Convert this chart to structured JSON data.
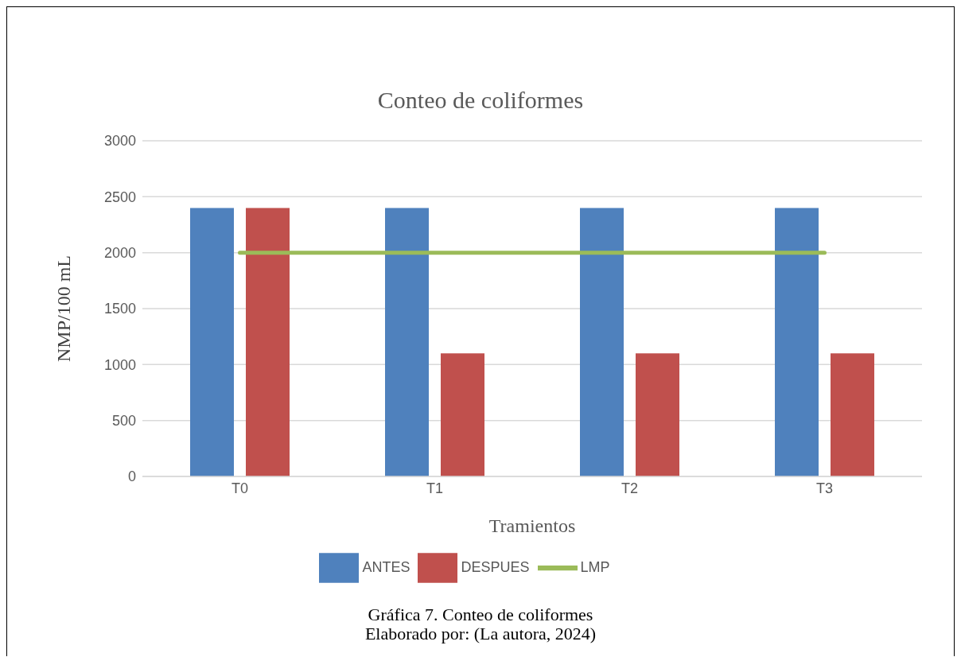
{
  "chart_data": {
    "type": "bar",
    "title": "Conteo de coliformes",
    "xlabel": "Tramientos",
    "ylabel": "NMP/100 mL",
    "categories": [
      "T0",
      "T1",
      "T2",
      "T3"
    ],
    "series": [
      {
        "name": "ANTES",
        "color": "#4f81bd",
        "values": [
          2400,
          2400,
          2400,
          2400
        ]
      },
      {
        "name": "DESPUES",
        "color": "#c0504d",
        "values": [
          2400,
          1100,
          1100,
          1100
        ]
      },
      {
        "name": "LMP",
        "type": "line",
        "color": "#9bbb59",
        "values": [
          2000,
          2000,
          2000,
          2000
        ]
      }
    ],
    "ylim": [
      0,
      3000
    ],
    "yticks": [
      0,
      500,
      1000,
      1500,
      2000,
      2500,
      3000
    ],
    "grid": "y",
    "legend": "bottom",
    "marker": "none",
    "annotations": [
      "Gráfica 7. Conteo de coliformes",
      "Elaborado por: (La autora, 2024)"
    ]
  }
}
